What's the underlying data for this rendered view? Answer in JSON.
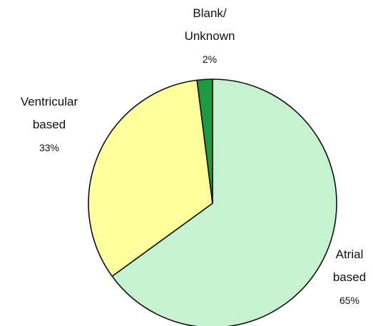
{
  "chart_data": {
    "type": "pie",
    "title": "",
    "slices": [
      {
        "label_lines": [
          "Atrial",
          "based"
        ],
        "percent_label": "65%",
        "value": 65,
        "color": "#c6f2cf"
      },
      {
        "label_lines": [
          "Ventricular",
          "based"
        ],
        "percent_label": "33%",
        "value": 33,
        "color": "#ffff9d"
      },
      {
        "label_lines": [
          "Blank/",
          "Unknown"
        ],
        "percent_label": "2%",
        "value": 2,
        "color": "#1f9a44"
      }
    ],
    "start_angle": "12 o'clock",
    "direction": "clockwise",
    "legend": "none (labels placed next to slices)"
  }
}
